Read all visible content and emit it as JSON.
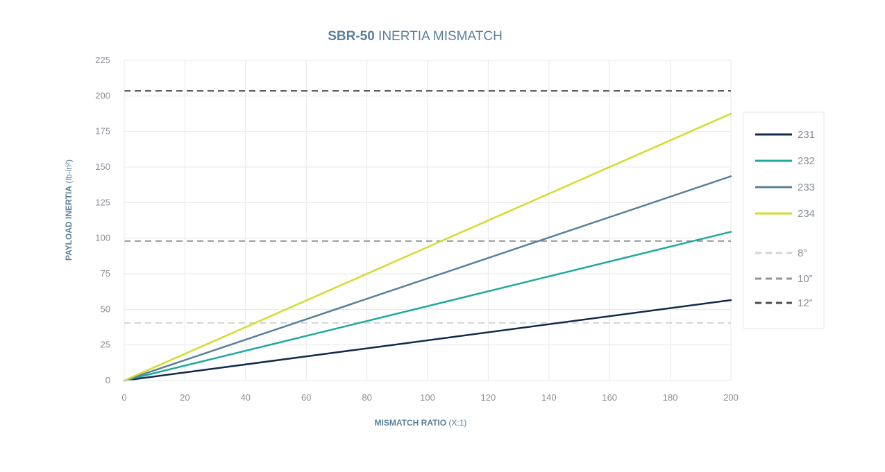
{
  "chart_data": {
    "type": "line",
    "title": {
      "bold": "SBR-50",
      "rest": " INERTIA MISMATCH"
    },
    "xlabel": {
      "bold": "MISMATCH RATIO",
      "rest": " (X:1)"
    },
    "ylabel": {
      "bold": "PAYLOAD INERTIA",
      "rest": " (lb-in²)"
    },
    "xlim": [
      0,
      200
    ],
    "ylim": [
      0,
      225
    ],
    "x_ticks": [
      "0",
      "20",
      "40",
      "60",
      "80",
      "100",
      "120",
      "140",
      "160",
      "180",
      "200"
    ],
    "y_ticks": [
      "0",
      "25",
      "50",
      "75",
      "100",
      "125",
      "150",
      "175",
      "200",
      "225"
    ],
    "grid": true,
    "legend_position": "right",
    "series": [
      {
        "name": "231",
        "color": "#13294b",
        "x": [
          0,
          200
        ],
        "y": [
          0,
          56.5
        ]
      },
      {
        "name": "232",
        "color": "#1ea89e",
        "x": [
          0,
          200
        ],
        "y": [
          0,
          104.5
        ]
      },
      {
        "name": "233",
        "color": "#5a7f99",
        "x": [
          0,
          200
        ],
        "y": [
          0,
          143.5
        ]
      },
      {
        "name": "234",
        "color": "#d3dc2c",
        "x": [
          0,
          200
        ],
        "y": [
          0,
          187.5
        ]
      }
    ],
    "reference_lines": [
      {
        "name": "8”",
        "color": "#d2d4d6",
        "y": 40.5
      },
      {
        "name": "10”",
        "color": "#8f9398",
        "y": 98
      },
      {
        "name": "12”",
        "color": "#4a4d52",
        "y": 203.5
      }
    ]
  }
}
